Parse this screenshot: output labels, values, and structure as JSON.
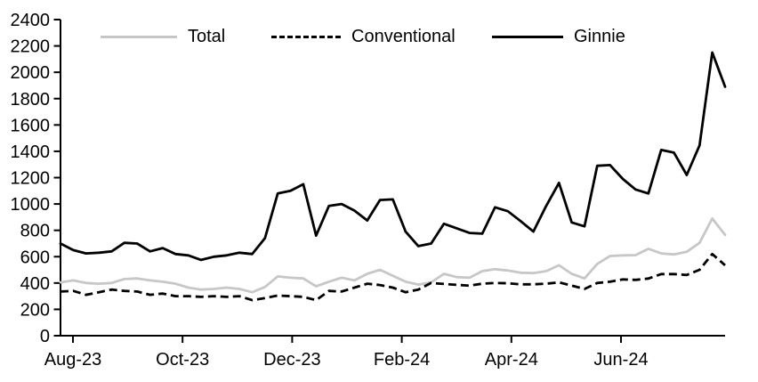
{
  "chart_data": {
    "type": "line",
    "title": "",
    "xlabel": "",
    "ylabel": "",
    "ylim": [
      0,
      2400
    ],
    "y_ticks": [
      0,
      200,
      400,
      600,
      800,
      1000,
      1200,
      1400,
      1600,
      1800,
      2000,
      2200,
      2400
    ],
    "x_tick_labels": [
      "Aug-23",
      "Oct-23",
      "Dec-23",
      "Feb-24",
      "Apr-24",
      "Jun-24"
    ],
    "x_frequency": "weekly",
    "grid": "off",
    "legend_position": "top",
    "axis_color": "#000000",
    "background_color": "#ffffff",
    "series": [
      {
        "name": "Total",
        "color": "#c7c7c7",
        "dash": "solid",
        "values": [
          405,
          420,
          400,
          395,
          400,
          430,
          435,
          420,
          410,
          395,
          365,
          350,
          355,
          365,
          355,
          330,
          370,
          450,
          440,
          435,
          375,
          410,
          440,
          420,
          470,
          500,
          455,
          410,
          388,
          405,
          470,
          445,
          440,
          490,
          505,
          495,
          478,
          475,
          490,
          535,
          470,
          435,
          545,
          605,
          610,
          612,
          660,
          625,
          617,
          637,
          705,
          890,
          765
        ]
      },
      {
        "name": "Conventional",
        "color": "#000000",
        "dash": "dashed",
        "values": [
          335,
          340,
          310,
          330,
          350,
          340,
          335,
          310,
          320,
          300,
          300,
          295,
          300,
          295,
          300,
          270,
          285,
          305,
          300,
          295,
          270,
          340,
          335,
          365,
          395,
          385,
          365,
          330,
          350,
          400,
          393,
          386,
          380,
          395,
          400,
          398,
          390,
          390,
          395,
          405,
          380,
          355,
          400,
          410,
          427,
          424,
          434,
          468,
          468,
          461,
          500,
          620,
          535
        ]
      },
      {
        "name": "Ginnie",
        "color": "#000000",
        "dash": "solid",
        "values": [
          700,
          650,
          625,
          630,
          640,
          705,
          700,
          640,
          665,
          620,
          610,
          575,
          600,
          610,
          630,
          620,
          740,
          1080,
          1100,
          1150,
          760,
          985,
          1000,
          950,
          875,
          1030,
          1035,
          790,
          680,
          700,
          850,
          815,
          780,
          775,
          975,
          945,
          870,
          790,
          985,
          1160,
          860,
          830,
          1290,
          1295,
          1190,
          1110,
          1080,
          1410,
          1390,
          1220,
          1445,
          2150,
          1890
        ]
      }
    ]
  }
}
